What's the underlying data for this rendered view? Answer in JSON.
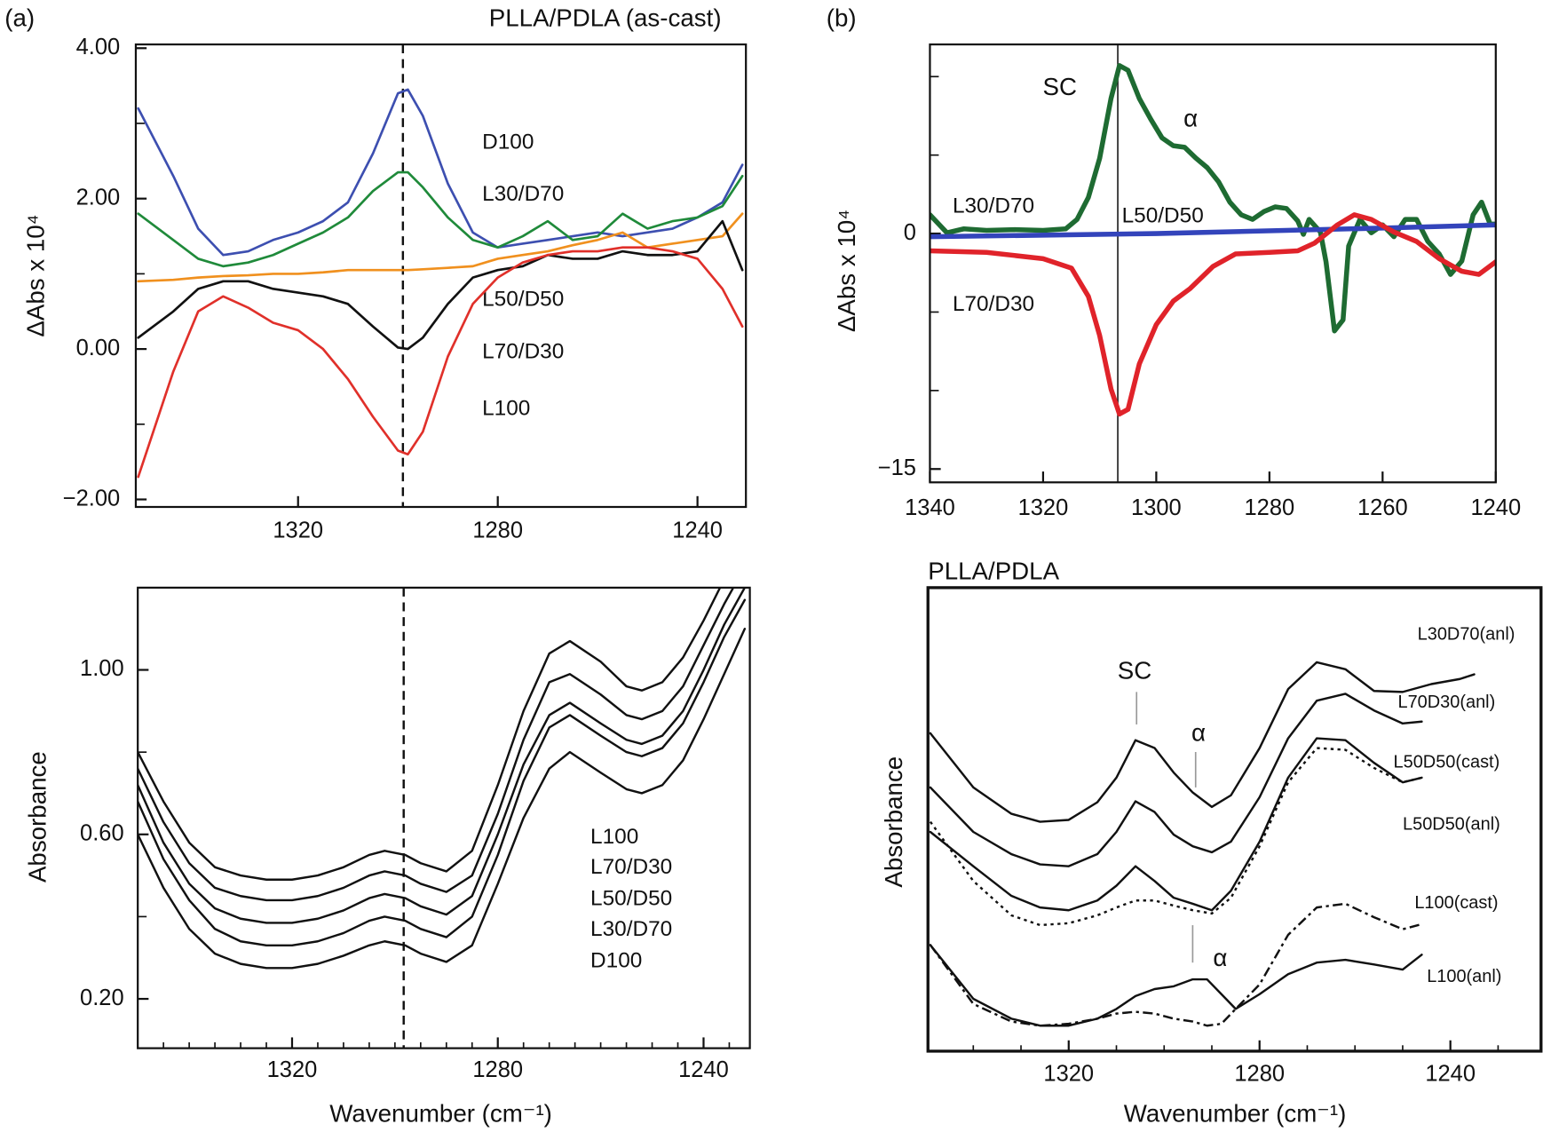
{
  "chart_data": [
    {
      "type": "line",
      "panel_label": "(a)",
      "title": "PLLA/PDLA (as-cast)",
      "y_label": "ΔAbs x 10⁴",
      "xlim": [
        1352.5,
        1230.3
      ],
      "ylim": [
        -2.1,
        4.05
      ],
      "xticks": [
        1320,
        1280,
        1240
      ],
      "yticks": [
        {
          "value": -2,
          "label": "−2.00"
        },
        {
          "value": 0,
          "label": "0.00"
        },
        {
          "value": 2,
          "label": "2.00"
        },
        {
          "value": 4,
          "label": "4.00"
        }
      ],
      "yticks_minor": [
        -1,
        1,
        3
      ],
      "reference_line": 1299,
      "reference_line_style": "dashed",
      "x": [
        1352,
        1345,
        1340,
        1335,
        1330,
        1325,
        1320,
        1315,
        1310,
        1305,
        1300,
        1298,
        1295,
        1290,
        1285,
        1280,
        1275,
        1270,
        1265,
        1260,
        1255,
        1250,
        1245,
        1240,
        1235,
        1231
      ],
      "series": [
        {
          "name": "D100",
          "color": "#3d4fb0",
          "values": [
            3.2,
            2.3,
            1.6,
            1.25,
            1.3,
            1.45,
            1.55,
            1.7,
            1.95,
            2.6,
            3.4,
            3.45,
            3.1,
            2.2,
            1.55,
            1.35,
            1.4,
            1.45,
            1.5,
            1.55,
            1.5,
            1.55,
            1.6,
            1.75,
            1.95,
            2.45
          ]
        },
        {
          "name": "L30/D70",
          "color": "#1f8a3a",
          "values": [
            1.8,
            1.45,
            1.2,
            1.1,
            1.15,
            1.25,
            1.4,
            1.55,
            1.75,
            2.1,
            2.35,
            2.35,
            2.15,
            1.75,
            1.45,
            1.35,
            1.5,
            1.7,
            1.45,
            1.5,
            1.8,
            1.6,
            1.7,
            1.75,
            1.9,
            2.3
          ]
        },
        {
          "name": "L50/D50",
          "color": "#f0901e",
          "values": [
            0.9,
            0.92,
            0.95,
            0.97,
            0.98,
            1.0,
            1.0,
            1.02,
            1.05,
            1.05,
            1.05,
            1.05,
            1.06,
            1.08,
            1.1,
            1.2,
            1.25,
            1.3,
            1.38,
            1.45,
            1.55,
            1.35,
            1.4,
            1.45,
            1.5,
            1.8
          ]
        },
        {
          "name": "L70/D30",
          "color": "#111111",
          "values": [
            0.15,
            0.5,
            0.8,
            0.9,
            0.9,
            0.8,
            0.75,
            0.7,
            0.6,
            0.3,
            0.02,
            0.0,
            0.15,
            0.6,
            0.95,
            1.05,
            1.1,
            1.25,
            1.2,
            1.2,
            1.3,
            1.25,
            1.25,
            1.3,
            1.7,
            1.05
          ]
        },
        {
          "name": "L100",
          "color": "#e0302a",
          "values": [
            -1.7,
            -0.3,
            0.5,
            0.7,
            0.55,
            0.35,
            0.25,
            0.0,
            -0.4,
            -0.9,
            -1.35,
            -1.4,
            -1.1,
            -0.1,
            0.6,
            0.95,
            1.15,
            1.25,
            1.3,
            1.3,
            1.35,
            1.35,
            1.3,
            1.2,
            0.8,
            0.3
          ]
        }
      ]
    },
    {
      "type": "line",
      "y_label": "Absorbance",
      "x_label": "Wavenumber (cm⁻¹)",
      "xlim": [
        1350,
        1231
      ],
      "ylim": [
        0.08,
        1.2
      ],
      "xticks": [
        1320,
        1280,
        1240
      ],
      "xticks_minor": [
        1345,
        1340,
        1335,
        1330,
        1325,
        1315,
        1310,
        1305,
        1300,
        1295,
        1290,
        1285,
        1275,
        1270,
        1265,
        1260,
        1255,
        1250,
        1245,
        1235
      ],
      "yticks": [
        {
          "value": 0.2,
          "label": "0.20"
        },
        {
          "value": 0.6,
          "label": "0.60"
        },
        {
          "value": 1,
          "label": "1.00"
        }
      ],
      "yticks_minor": [
        0.4,
        0.8
      ],
      "reference_line": 1298.3,
      "reference_line_style": "dashed",
      "x": [
        1350,
        1345,
        1340,
        1335,
        1330,
        1325,
        1320,
        1315,
        1310,
        1305,
        1302,
        1298,
        1295,
        1290,
        1285,
        1280,
        1275,
        1270,
        1266,
        1260,
        1255,
        1252,
        1248,
        1244,
        1240,
        1236,
        1232
      ],
      "series": [
        {
          "name": "L100",
          "color": "#111111",
          "values": [
            0.8,
            0.68,
            0.58,
            0.52,
            0.5,
            0.49,
            0.49,
            0.5,
            0.52,
            0.55,
            0.56,
            0.55,
            0.53,
            0.51,
            0.56,
            0.72,
            0.9,
            1.04,
            1.07,
            1.02,
            0.96,
            0.95,
            0.97,
            1.03,
            1.12,
            1.22,
            1.3
          ]
        },
        {
          "name": "L70/D30",
          "color": "#111111",
          "values": [
            0.76,
            0.63,
            0.53,
            0.47,
            0.45,
            0.44,
            0.44,
            0.45,
            0.47,
            0.5,
            0.51,
            0.5,
            0.48,
            0.46,
            0.5,
            0.65,
            0.83,
            0.97,
            0.99,
            0.94,
            0.89,
            0.88,
            0.9,
            0.96,
            1.06,
            1.16,
            1.25
          ]
        },
        {
          "name": "L50/D50",
          "color": "#111111",
          "values": [
            0.72,
            0.58,
            0.48,
            0.42,
            0.395,
            0.385,
            0.385,
            0.395,
            0.415,
            0.445,
            0.455,
            0.445,
            0.425,
            0.405,
            0.45,
            0.6,
            0.77,
            0.89,
            0.92,
            0.87,
            0.83,
            0.82,
            0.84,
            0.9,
            1.0,
            1.11,
            1.2
          ]
        },
        {
          "name": "L30/D70",
          "color": "#111111",
          "values": [
            0.68,
            0.54,
            0.44,
            0.37,
            0.34,
            0.33,
            0.33,
            0.34,
            0.36,
            0.39,
            0.4,
            0.39,
            0.37,
            0.35,
            0.4,
            0.55,
            0.73,
            0.86,
            0.89,
            0.84,
            0.8,
            0.79,
            0.81,
            0.87,
            0.97,
            1.08,
            1.17
          ]
        },
        {
          "name": "D100",
          "color": "#111111",
          "values": [
            0.6,
            0.47,
            0.37,
            0.31,
            0.285,
            0.275,
            0.275,
            0.285,
            0.305,
            0.33,
            0.34,
            0.33,
            0.31,
            0.29,
            0.33,
            0.48,
            0.64,
            0.76,
            0.8,
            0.75,
            0.71,
            0.7,
            0.72,
            0.78,
            0.88,
            0.99,
            1.1
          ]
        }
      ]
    },
    {
      "type": "line",
      "panel_label": "(b)",
      "y_label": "ΔAbs x 10⁴",
      "xlim": [
        1340,
        1240
      ],
      "ylim": [
        -15.85,
        12.05
      ],
      "xticks": [
        1340,
        1320,
        1300,
        1280,
        1260,
        1240
      ],
      "yticks": [
        {
          "value": -15,
          "label": "−15"
        },
        0
      ],
      "yticks_minor": [
        -10,
        -5,
        5,
        10
      ],
      "reference_line": 1306.8,
      "reference_line_style": "solid",
      "annotations": [
        {
          "text": "SC"
        },
        {
          "text": "α"
        }
      ],
      "series": [
        {
          "name": "L30/D70",
          "color": "#1e6b32",
          "x": [
            1340,
            1337,
            1334,
            1330,
            1325,
            1320,
            1316,
            1314,
            1312,
            1310,
            1308,
            1306.5,
            1305,
            1303,
            1301,
            1299,
            1297,
            1295,
            1293,
            1291,
            1289,
            1287,
            1285,
            1283,
            1281,
            1279,
            1277,
            1275,
            1274,
            1273,
            1271,
            1270,
            1268.5,
            1267,
            1266,
            1264,
            1262,
            1260,
            1258,
            1256,
            1254,
            1252,
            1250,
            1248,
            1246,
            1244,
            1242.5,
            1241,
            1240
          ],
          "values": [
            1.2,
            0.05,
            0.3,
            0.2,
            0.25,
            0.2,
            0.3,
            0.9,
            2.3,
            4.8,
            8.6,
            10.7,
            10.4,
            8.6,
            7.3,
            6.1,
            5.6,
            5.5,
            4.8,
            4.2,
            3.3,
            2.0,
            1.2,
            0.9,
            1.4,
            1.7,
            1.6,
            0.8,
            -0.05,
            0.9,
            0.1,
            -1.8,
            -6.2,
            -5.5,
            -0.8,
            0.9,
            0.05,
            0.55,
            -0.2,
            0.9,
            0.9,
            -0.5,
            -1.3,
            -2.6,
            -1.75,
            1.2,
            2.0,
            0.6,
            0.6
          ]
        },
        {
          "name": "L50/D50",
          "color": "#3344bb",
          "x": [
            1340,
            1300,
            1260,
            1240
          ],
          "values": [
            -0.2,
            0.0,
            0.35,
            0.55
          ]
        },
        {
          "name": "L70/D30",
          "color": "#e0232a",
          "x": [
            1340,
            1330,
            1320,
            1315,
            1312,
            1310,
            1308,
            1306.5,
            1305,
            1303,
            1300,
            1297,
            1294,
            1290,
            1286,
            1280,
            1275,
            1272,
            1268,
            1265,
            1262,
            1258,
            1254,
            1250,
            1246,
            1243,
            1240
          ],
          "values": [
            -1.1,
            -1.2,
            -1.6,
            -2.2,
            -4.0,
            -6.5,
            -9.9,
            -11.5,
            -11.2,
            -8.3,
            -5.8,
            -4.3,
            -3.5,
            -2.1,
            -1.3,
            -1.2,
            -1.1,
            -0.6,
            0.55,
            1.2,
            0.9,
            0.1,
            -0.5,
            -1.6,
            -2.4,
            -2.6,
            -1.8
          ]
        }
      ]
    },
    {
      "type": "line",
      "title": "PLLA/PDLA",
      "y_label": "Absorbance",
      "x_label": "Wavenumber (cm⁻¹)",
      "xlim": [
        1349.5,
        1221
      ],
      "ylim": [
        0,
        100
      ],
      "xticks": [
        1320,
        1280,
        1240
      ],
      "xticks_minor": [
        1340,
        1330,
        1310,
        1300,
        1290,
        1270,
        1260,
        1250,
        1230
      ],
      "annotations": [
        {
          "text": "SC"
        },
        {
          "text": "α"
        },
        {
          "text": "α"
        }
      ],
      "series": [
        {
          "name": "L30D70(anl)",
          "color": "#111111",
          "dash": "solid",
          "x": [
            1349,
            1340,
            1332,
            1326,
            1320,
            1314,
            1310,
            1306,
            1302,
            1298,
            1294,
            1290,
            1286,
            1280,
            1274,
            1268,
            1262,
            1256,
            1250,
            1244,
            1238,
            1235
          ],
          "values": [
            68.6,
            56.9,
            51.2,
            49.5,
            49.9,
            53.7,
            59.0,
            67.1,
            65.4,
            60.1,
            55.8,
            52.7,
            55.2,
            65.4,
            78.1,
            83.9,
            82.4,
            77.7,
            77.5,
            79.2,
            80.3,
            81.3
          ]
        },
        {
          "name": "L70D30(anl)",
          "color": "#111111",
          "dash": "solid",
          "x": [
            1349,
            1340,
            1332,
            1326,
            1320,
            1314,
            1310,
            1306,
            1302,
            1298,
            1294,
            1290,
            1286,
            1280,
            1274,
            1268,
            1262,
            1256,
            1250,
            1246
          ],
          "values": [
            56.9,
            47.3,
            42.5,
            40.3,
            39.9,
            42.5,
            47.3,
            53.9,
            51.6,
            46.7,
            44.2,
            42.9,
            45.2,
            54.8,
            67.5,
            75.6,
            77.1,
            73.5,
            70.7,
            71.1
          ]
        },
        {
          "name": "L50D50(cast)",
          "color": "#111111",
          "dash": "dotted",
          "x": [
            1349,
            1340,
            1332,
            1326,
            1320,
            1314,
            1310,
            1306,
            1302,
            1298,
            1294,
            1290,
            1286,
            1280,
            1274,
            1268,
            1262,
            1256,
            1250,
            1246
          ],
          "values": [
            49.5,
            36.7,
            29.3,
            27.2,
            27.6,
            29.3,
            31.0,
            32.5,
            32.5,
            31.4,
            30.4,
            29.7,
            33.1,
            44.2,
            58.0,
            65.4,
            65.0,
            61.1,
            58.0,
            59.0
          ]
        },
        {
          "name": "L50D50(anl)",
          "color": "#111111",
          "dash": "solid",
          "x": [
            1349,
            1340,
            1332,
            1326,
            1320,
            1314,
            1310,
            1306,
            1302,
            1298,
            1294,
            1290,
            1286,
            1280,
            1274,
            1268,
            1262,
            1256,
            1250,
            1246
          ],
          "values": [
            47.3,
            39.9,
            33.5,
            31.0,
            30.4,
            32.5,
            35.7,
            39.9,
            36.7,
            33.1,
            31.8,
            30.4,
            34.6,
            45.2,
            59.0,
            67.5,
            67.1,
            62.2,
            58.0,
            59.0
          ]
        },
        {
          "name": "L100(cast)",
          "color": "#111111",
          "dash": "dashdot",
          "x": [
            1349,
            1340,
            1332,
            1326,
            1320,
            1314,
            1310,
            1306,
            1302,
            1298,
            1294,
            1291,
            1288,
            1285,
            1280,
            1274,
            1268,
            1262,
            1256,
            1250,
            1246
          ],
          "values": [
            22.9,
            10.2,
            6.4,
            5.5,
            5.9,
            7.0,
            8.1,
            8.5,
            8.1,
            7.0,
            6.4,
            5.5,
            5.9,
            9.1,
            14.4,
            25.1,
            31.0,
            31.8,
            28.9,
            26.3,
            27.4
          ]
        },
        {
          "name": "L100(anl)",
          "color": "#111111",
          "dash": "solid",
          "x": [
            1349,
            1340,
            1332,
            1326,
            1320,
            1314,
            1310,
            1306,
            1302,
            1298,
            1294,
            1291,
            1288,
            1285,
            1280,
            1274,
            1268,
            1262,
            1256,
            1250,
            1246
          ],
          "values": [
            22.9,
            11.3,
            7.0,
            5.5,
            5.5,
            7.0,
            9.1,
            11.9,
            13.4,
            14.0,
            15.5,
            15.5,
            12.3,
            9.1,
            12.3,
            16.6,
            19.1,
            19.7,
            18.7,
            17.6,
            20.8
          ]
        }
      ]
    }
  ]
}
